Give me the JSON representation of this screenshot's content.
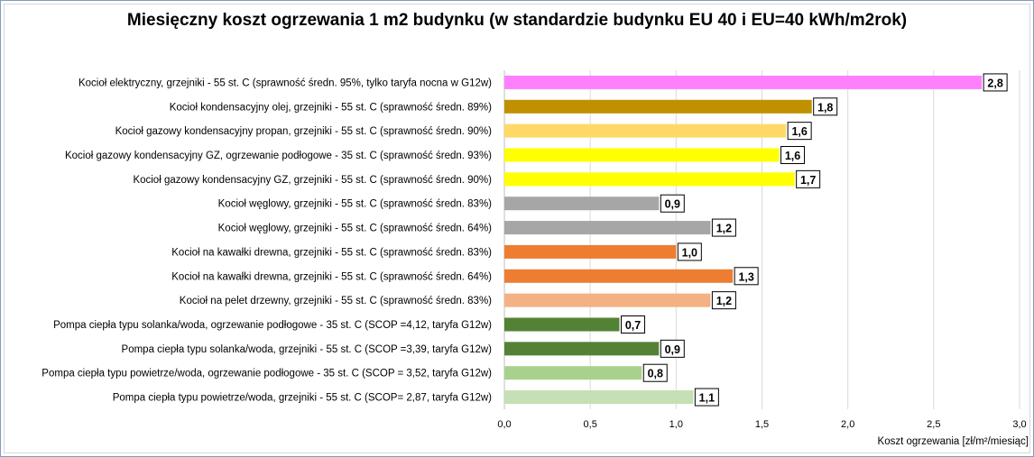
{
  "chart_data": {
    "type": "bar",
    "orientation": "horizontal",
    "title": "Miesięczny koszt ogrzewania 1 m2 budynku (w standardzie budynku EU 40 i EU=40 kWh/m2rok)",
    "xlabel": "Koszt ogrzewania [zł/m²/miesiąc]",
    "xlim": [
      0,
      3
    ],
    "ticks": [
      "0,0",
      "0,5",
      "1,0",
      "1,5",
      "2,0",
      "2,5",
      "3,0"
    ],
    "grid": true,
    "categories": [
      "Kocioł  elektryczny,  grzejniki - 55 st. C  (sprawność średn. 95%, tylko taryfa nocna w G12w)",
      "Kocioł  kondensacyjny olej,  grzejniki - 55 st. C (sprawność średn. 89%)",
      "Kocioł gazowy kondensacyjny propan, grzejniki - 55 st. C (sprawność średn. 90%)",
      "Kocioł gazowy kondensacyjny GZ, ogrzewanie podłogowe - 35 st. C (sprawność średn. 93%)",
      "Kocioł gazowy kondensacyjny GZ, grzejniki - 55 st. C (sprawność średn. 90%)",
      "Kocioł węglowy,  grzejniki - 55 st. C (sprawność średn. 83%)",
      "Kocioł węglowy,  grzejniki - 55 st. C (sprawność średn. 64%)",
      "Kocioł na kawałki drewna, grzejniki - 55 st. C (sprawność średn. 83%)",
      "Kocioł na kawałki drewna, grzejniki - 55 st. C (sprawność średn. 64%)",
      "Kocioł  na pelet drzewny, grzejniki - 55 st. C (sprawność średn. 83%)",
      "Pompa ciepła typu solanka/woda, ogrzewanie podłogowe - 35 st. C (SCOP =4,12, taryfa G12w)",
      "Pompa ciepła typu solanka/woda, grzejniki - 55 st. C (SCOP =3,39, taryfa G12w)",
      "Pompa ciepła typu powietrze/woda, ogrzewanie podłogowe - 35 st. C (SCOP = 3,52, taryfa G12w)",
      "Pompa ciepła typu powietrze/woda, grzejniki - 55 st. C (SCOP= 2,87, taryfa G12w)"
    ],
    "values": [
      2.78,
      1.79,
      1.64,
      1.6,
      1.69,
      0.9,
      1.2,
      1.0,
      1.33,
      1.2,
      0.67,
      0.9,
      0.8,
      1.1
    ],
    "labels": [
      "2,8",
      "1,8",
      "1,6",
      "1,6",
      "1,7",
      "0,9",
      "1,2",
      "1,0",
      "1,3",
      "1,2",
      "0,7",
      "0,9",
      "0,8",
      "1,1"
    ],
    "colors": [
      "#ff80ff",
      "#bf9000",
      "#ffd966",
      "#ffff00",
      "#ffff00",
      "#a6a6a6",
      "#a6a6a6",
      "#ed7d31",
      "#ed7d31",
      "#f4b183",
      "#548235",
      "#548235",
      "#a9d18e",
      "#c5e0b4"
    ]
  }
}
